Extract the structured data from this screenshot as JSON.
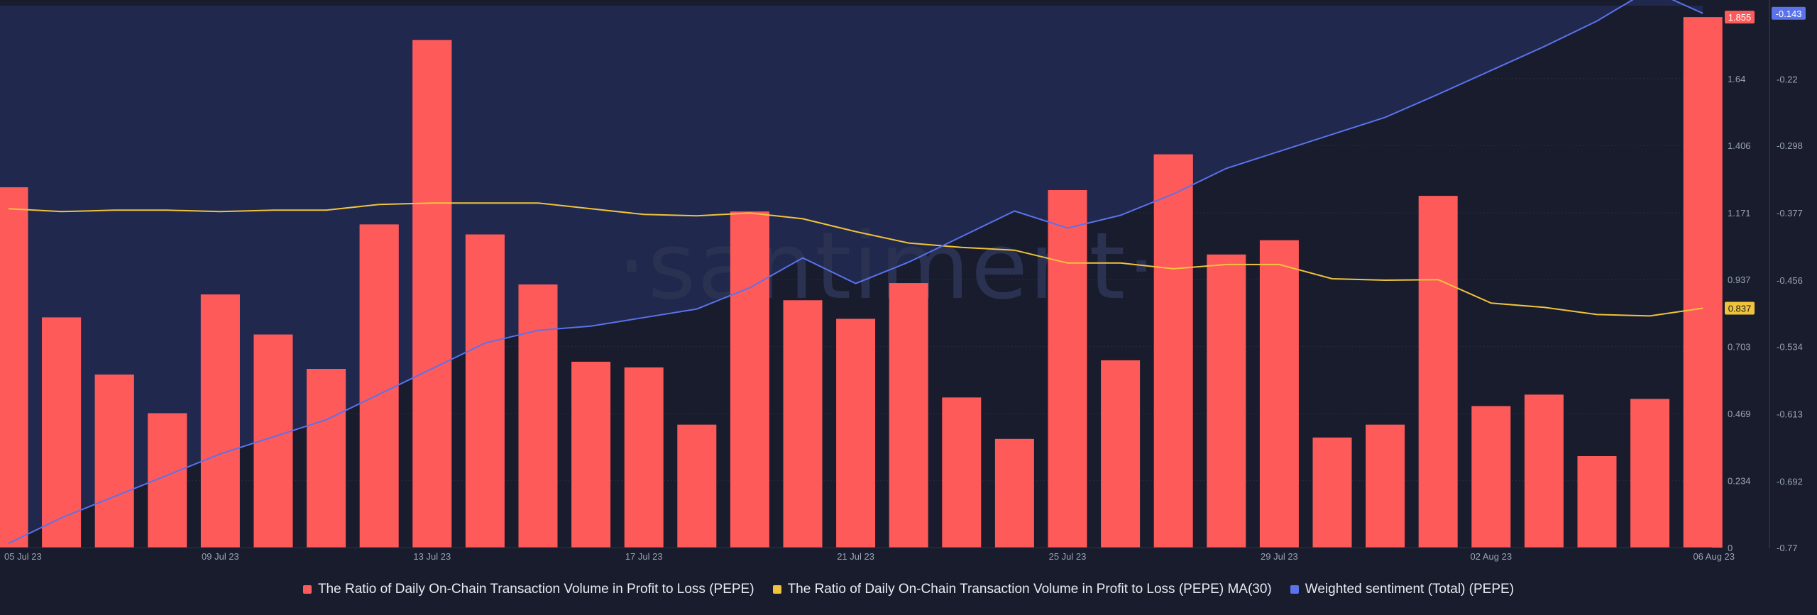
{
  "watermark": "·santiment·",
  "colors": {
    "background": "#181c2c",
    "sentiment_area": "#20284d",
    "bars": "#ff5a5a",
    "bars_over_area": "#e4607a",
    "ma30": "#f0c33c",
    "sentiment": "#5a72ea",
    "grid": "#272b3d",
    "tick_text": "#9aa3b4"
  },
  "legend": [
    {
      "label": "The Ratio of Daily On-Chain Transaction Volume in Profit to Loss (PEPE)",
      "color": "#ff5a5a"
    },
    {
      "label": "The Ratio of Daily On-Chain Transaction Volume in Profit to Loss (PEPE) MA(30)",
      "color": "#f0c33c"
    },
    {
      "label": "Weighted sentiment (Total) (PEPE)",
      "color": "#5a72ea"
    }
  ],
  "chart_data": {
    "type": "bar",
    "title": "",
    "x_tick_labels": [
      "05 Jul 23",
      "09 Jul 23",
      "13 Jul 23",
      "17 Jul 23",
      "21 Jul 23",
      "25 Jul 23",
      "29 Jul 23",
      "02 Aug 23",
      "06 Aug 23"
    ],
    "x": [
      "05 Jul 23",
      "06 Jul 23",
      "07 Jul 23",
      "08 Jul 23",
      "09 Jul 23",
      "10 Jul 23",
      "11 Jul 23",
      "12 Jul 23",
      "13 Jul 23",
      "14 Jul 23",
      "15 Jul 23",
      "16 Jul 23",
      "17 Jul 23",
      "18 Jul 23",
      "19 Jul 23",
      "20 Jul 23",
      "21 Jul 23",
      "22 Jul 23",
      "23 Jul 23",
      "24 Jul 23",
      "25 Jul 23",
      "26 Jul 23",
      "27 Jul 23",
      "28 Jul 23",
      "29 Jul 23",
      "30 Jul 23",
      "31 Jul 23",
      "01 Aug 23",
      "02 Aug 23",
      "03 Aug 23",
      "04 Aug 23",
      "05 Aug 23",
      "06 Aug 23"
    ],
    "left_axis": {
      "ticks": [
        "0",
        "0.234",
        "0.469",
        "0.703",
        "0.937",
        "1.171",
        "1.406",
        "1.64"
      ],
      "min": 0,
      "max": 1.895
    },
    "right_axis": {
      "ticks": [
        "-0.77",
        "-0.692",
        "-0.613",
        "-0.534",
        "-0.456",
        "-0.377",
        "-0.298",
        "-0.22"
      ],
      "min": -0.77,
      "max": -0.134
    },
    "series": [
      {
        "name": "The Ratio of Daily On-Chain Transaction Volume in Profit to Loss (PEPE)",
        "type": "bar",
        "axis": "left",
        "values": [
          1.26,
          0.805,
          0.605,
          0.47,
          0.885,
          0.745,
          0.625,
          1.13,
          1.775,
          1.095,
          0.92,
          0.65,
          0.63,
          0.43,
          1.175,
          0.865,
          0.8,
          0.925,
          0.525,
          0.38,
          1.25,
          0.655,
          1.375,
          1.025,
          1.075,
          0.385,
          0.43,
          1.23,
          0.495,
          0.535,
          0.32,
          0.52,
          1.855
        ],
        "last_value_label": "1.855"
      },
      {
        "name": "The Ratio of Daily On-Chain Transaction Volume in Profit to Loss (PEPE) MA(30)",
        "type": "line",
        "axis": "left",
        "values": [
          1.185,
          1.175,
          1.18,
          1.18,
          1.175,
          1.18,
          1.18,
          1.2,
          1.205,
          1.205,
          1.205,
          1.185,
          1.165,
          1.16,
          1.17,
          1.15,
          1.105,
          1.065,
          1.05,
          1.04,
          0.995,
          0.995,
          0.975,
          0.99,
          0.99,
          0.94,
          0.935,
          0.937,
          0.855,
          0.84,
          0.815,
          0.81,
          0.837
        ],
        "last_value_label": "0.837"
      },
      {
        "name": "Weighted sentiment (Total) (PEPE)",
        "type": "line",
        "axis": "right",
        "values": [
          -0.765,
          -0.735,
          -0.71,
          -0.685,
          -0.66,
          -0.64,
          -0.62,
          -0.59,
          -0.56,
          -0.53,
          -0.515,
          -0.51,
          -0.5,
          -0.49,
          -0.465,
          -0.43,
          -0.46,
          -0.435,
          -0.405,
          -0.375,
          -0.395,
          -0.38,
          -0.355,
          -0.325,
          -0.305,
          -0.285,
          -0.265,
          -0.238,
          -0.21,
          -0.182,
          -0.152,
          -0.115,
          -0.143
        ],
        "last_value_label": "-0.143"
      }
    ],
    "grid": true,
    "legend_position": "bottom-center"
  }
}
